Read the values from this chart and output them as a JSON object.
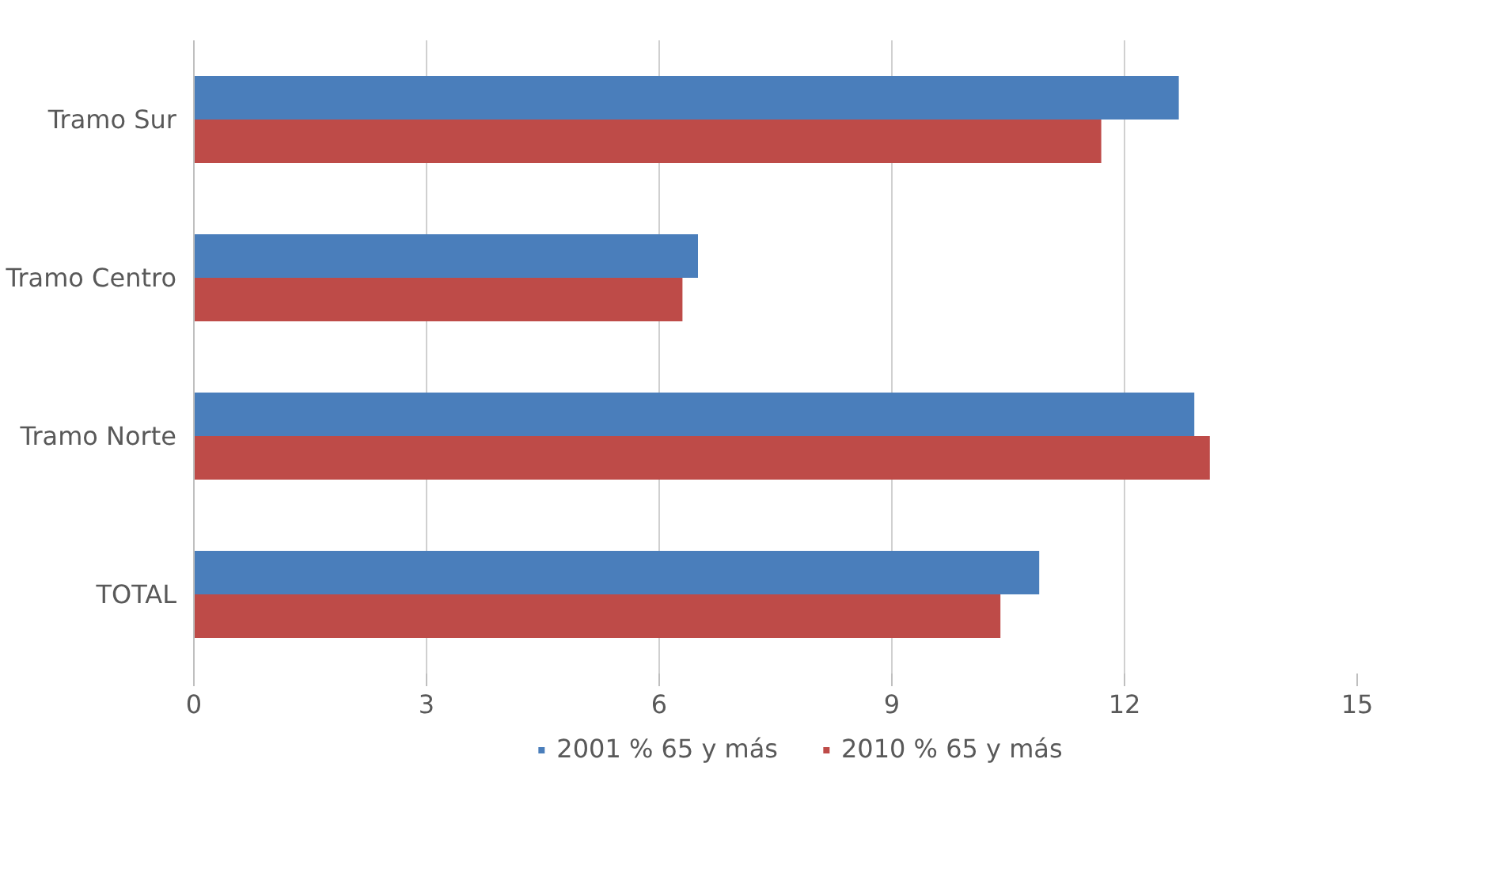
{
  "chart_data": {
    "type": "bar",
    "orientation": "horizontal",
    "categories": [
      "Tramo Sur",
      "Tramo Centro",
      "Tramo Norte",
      "TOTAL"
    ],
    "series": [
      {
        "name": "2001 % 65 y más",
        "color": "#4a7ebb",
        "values": [
          12.7,
          6.5,
          12.9,
          10.9
        ]
      },
      {
        "name": "2010 % 65 y más",
        "color": "#be4b48",
        "values": [
          11.7,
          6.3,
          13.1,
          10.4
        ]
      }
    ],
    "xlim": [
      0,
      15
    ],
    "xticks": [
      0,
      3,
      6,
      9,
      12,
      15
    ],
    "grid": "x",
    "legend": "bottom"
  }
}
